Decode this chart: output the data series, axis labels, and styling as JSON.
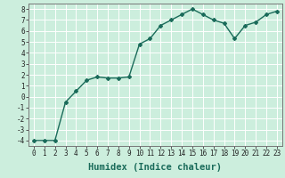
{
  "x": [
    0,
    1,
    2,
    3,
    4,
    5,
    6,
    7,
    8,
    9,
    10,
    11,
    12,
    13,
    14,
    15,
    16,
    17,
    18,
    19,
    20,
    21,
    22,
    23
  ],
  "y": [
    -4.0,
    -4.0,
    -4.0,
    -0.5,
    0.5,
    1.5,
    1.8,
    1.7,
    1.7,
    1.8,
    4.8,
    5.3,
    6.5,
    7.0,
    7.5,
    8.0,
    7.5,
    7.0,
    6.7,
    5.3,
    6.5,
    6.8,
    7.5,
    7.8
  ],
  "line_color": "#1a6b5a",
  "marker": "D",
  "marker_size": 2.0,
  "bg_color": "#cceedd",
  "grid_color": "#ffffff",
  "xlabel": "Humidex (Indice chaleur)",
  "xlabel_fontsize": 7.5,
  "xlim": [
    -0.5,
    23.5
  ],
  "ylim": [
    -4.5,
    8.5
  ],
  "yticks": [
    -4,
    -3,
    -2,
    -1,
    0,
    1,
    2,
    3,
    4,
    5,
    6,
    7,
    8
  ],
  "xticks": [
    0,
    1,
    2,
    3,
    4,
    5,
    6,
    7,
    8,
    9,
    10,
    11,
    12,
    13,
    14,
    15,
    16,
    17,
    18,
    19,
    20,
    21,
    22,
    23
  ],
  "tick_fontsize": 5.5,
  "line_width": 1.0
}
